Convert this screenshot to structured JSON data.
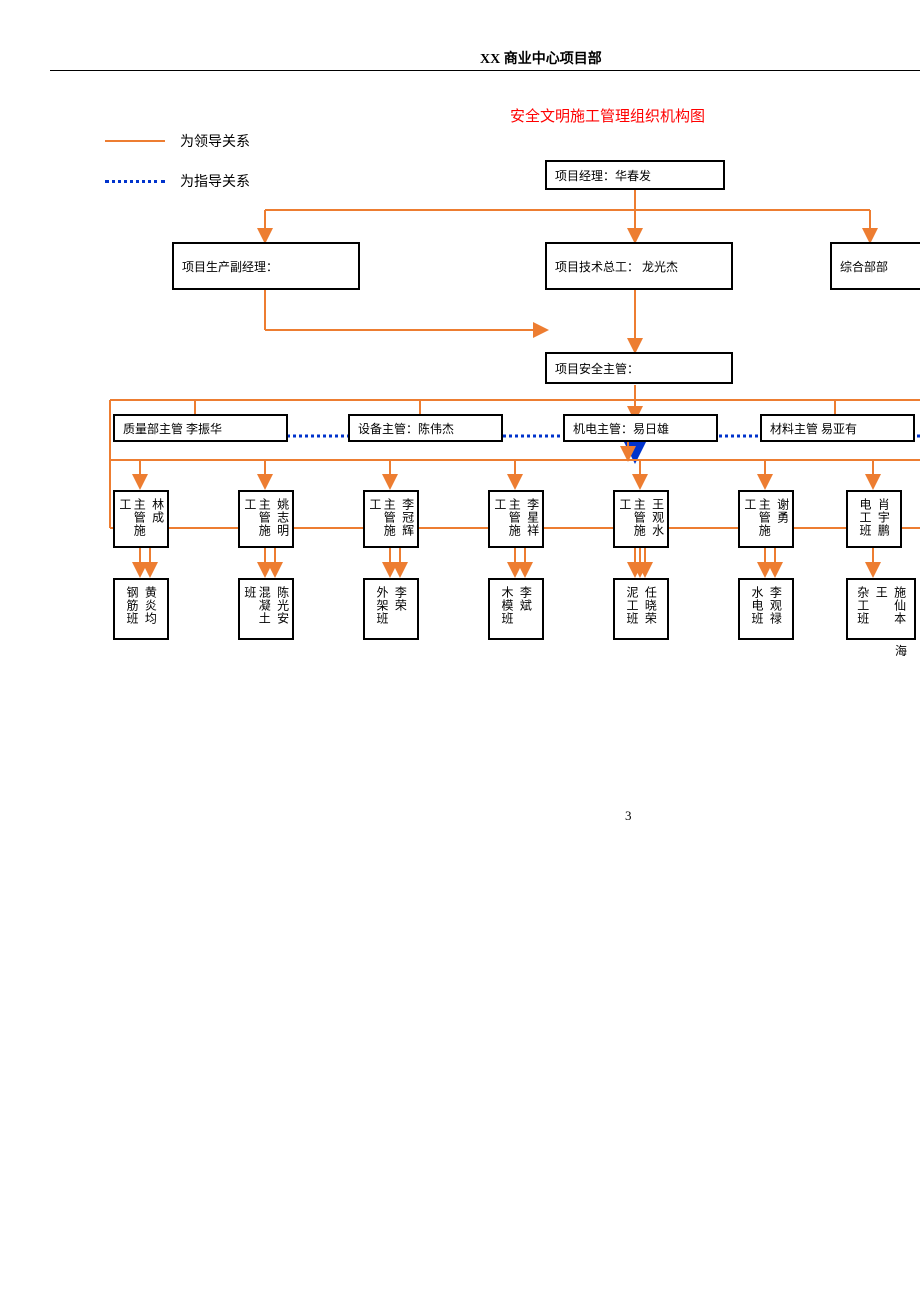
{
  "header": "XX 商业中心项目部",
  "title": "安全文明施工管理组织机构图",
  "legend": {
    "solid": "为领导关系",
    "dotted": "为指导关系"
  },
  "colors": {
    "line": "#ed7d31",
    "guide": "#0033cc",
    "title": "#ff0000",
    "border": "#000000",
    "bg": "#ffffff"
  },
  "nodes": {
    "pm_label": "项目经理：",
    "pm_name": "华春发",
    "deputy": "项目生产副经理：",
    "tech_label": "项目技术总工：",
    "tech_name": "龙光杰",
    "general": "综合部部",
    "safety": "项目安全主管：",
    "quality_label": "质量部主管",
    "quality_name": "李振华",
    "equip_label": "设备主管：",
    "equip_name": "陈伟杰",
    "mech_label": "机电主管：",
    "mech_name": "易日雄",
    "material_label": "材料主管",
    "material_name": "易亚有"
  },
  "supervisors": [
    {
      "role": "主管施工",
      "name": "林成"
    },
    {
      "role": "主管施工",
      "name": "姚志明"
    },
    {
      "role": "主管施工",
      "name": "李冠辉"
    },
    {
      "role": "主管施工",
      "name": "李星祥"
    },
    {
      "role": "主管施工",
      "name": "王观水"
    },
    {
      "role": "主管施工",
      "name": "谢勇"
    },
    {
      "role": "电工班",
      "name": "肖宇鹏"
    }
  ],
  "teams": [
    {
      "role": "钢筋班",
      "name": "黄炎均"
    },
    {
      "role": "混凝土班",
      "name": "陈光安"
    },
    {
      "role": "外架班",
      "name": "李荣"
    },
    {
      "role": "木模班",
      "name": "李斌"
    },
    {
      "role": "泥工班",
      "name": "任晓荣"
    },
    {
      "role": "水电班",
      "name": "李观禄"
    },
    {
      "role": "杂工班",
      "name": "王",
      "name2": "施仙本"
    }
  ],
  "extra_name": "海",
  "page": "3"
}
